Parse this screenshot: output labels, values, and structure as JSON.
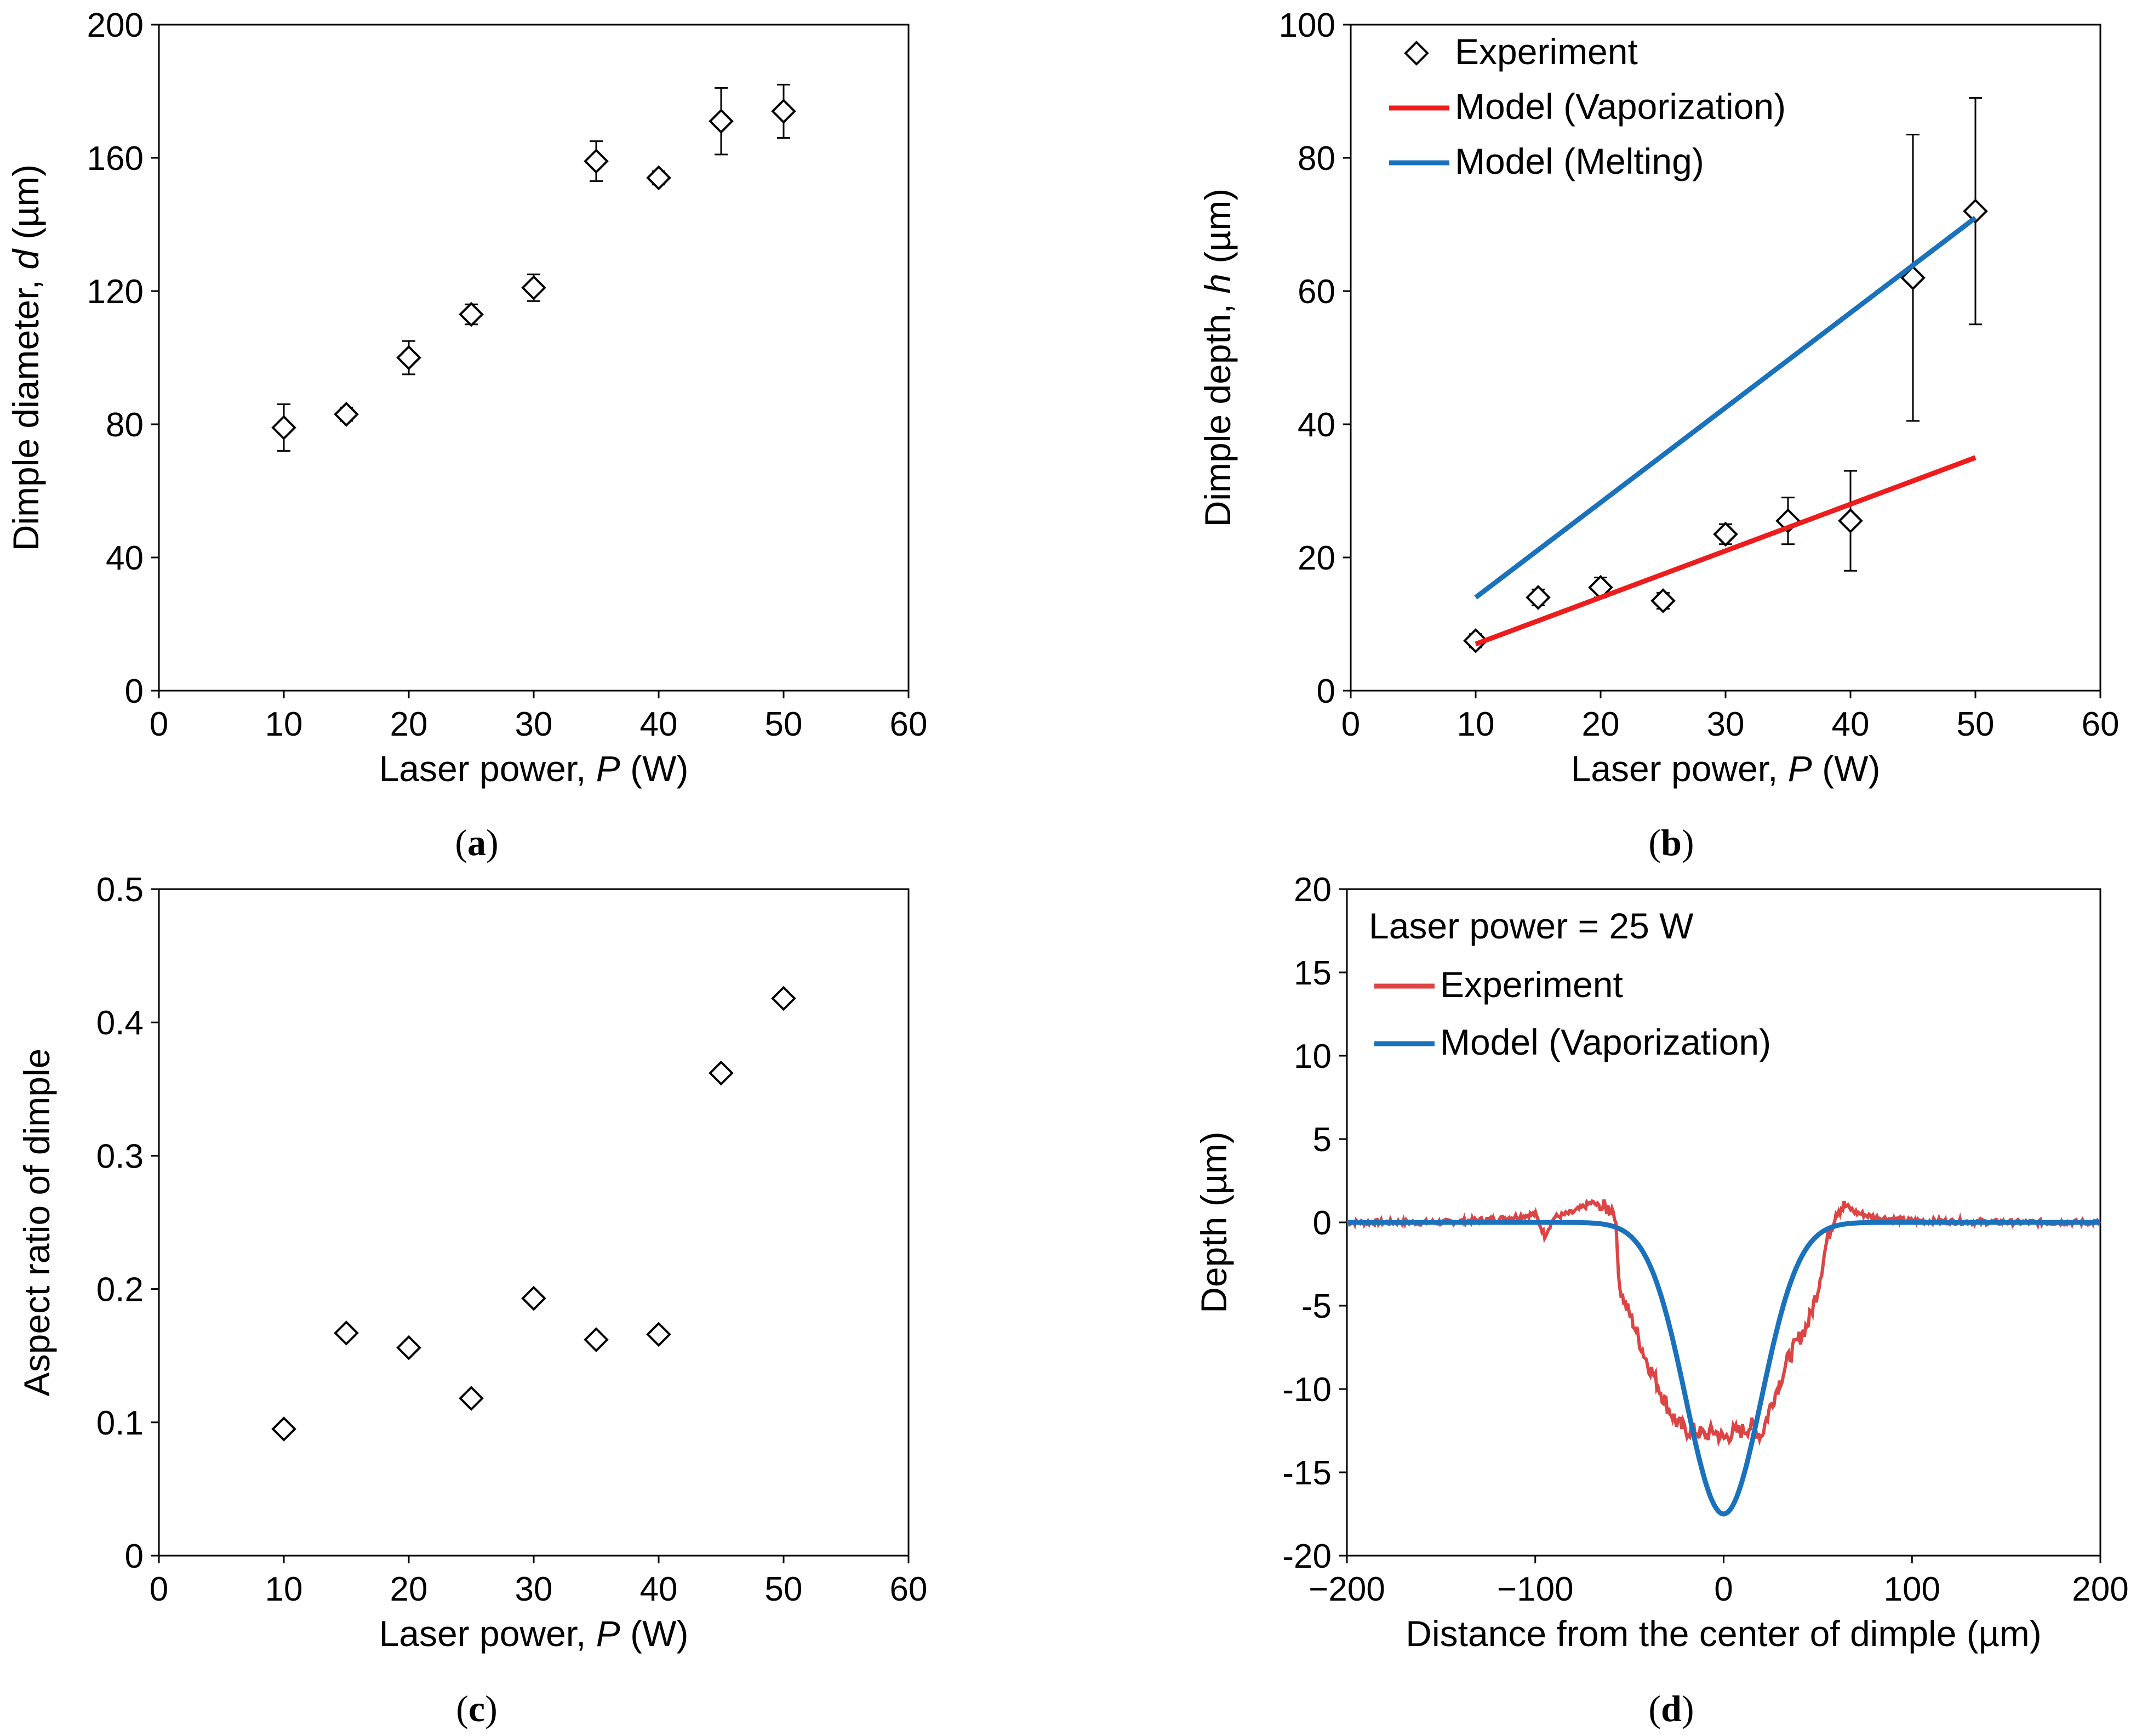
{
  "chart_data": [
    {
      "panel": "(a)",
      "type": "scatter",
      "title": "",
      "xlabel": "Laser power, ",
      "xlabel_var": "P",
      "xlabel_unit": " (W)",
      "ylabel": "Dimple diameter, ",
      "ylabel_var": "d",
      "ylabel_unit": " (µm)",
      "xlim": [
        0,
        60
      ],
      "ylim": [
        0,
        200
      ],
      "xticks": [
        0,
        10,
        20,
        30,
        40,
        50,
        60
      ],
      "yticks": [
        0,
        40,
        80,
        120,
        160,
        200
      ],
      "series": [
        {
          "name": "Experiment",
          "marker": "diamond",
          "x": [
            10,
            15,
            20,
            25,
            30,
            35,
            40,
            45,
            50
          ],
          "y": [
            79,
            83,
            100,
            113,
            121,
            159,
            154,
            171,
            174
          ],
          "err": [
            7,
            2,
            5,
            3,
            4,
            6,
            2,
            10,
            8
          ]
        }
      ]
    },
    {
      "panel": "(b)",
      "type": "scatter",
      "title": "",
      "xlabel": "Laser power, ",
      "xlabel_var": "P",
      "xlabel_unit": " (W)",
      "ylabel": "Dimple depth, ",
      "ylabel_var": "h",
      "ylabel_unit": " (µm)",
      "xlim": [
        0,
        60
      ],
      "ylim": [
        0,
        100
      ],
      "xticks": [
        0,
        10,
        20,
        30,
        40,
        50,
        60
      ],
      "yticks": [
        0,
        20,
        40,
        60,
        80,
        100
      ],
      "legend_position": "top-left",
      "series": [
        {
          "name": "Experiment",
          "marker": "diamond",
          "x": [
            10,
            15,
            20,
            25,
            30,
            35,
            40,
            45,
            50
          ],
          "y": [
            7.5,
            14,
            15.5,
            13.5,
            23.5,
            25.5,
            25.5,
            62,
            72
          ],
          "err": [
            1,
            1.2,
            1.5,
            1.2,
            1.5,
            3.5,
            7.5,
            21.5,
            17
          ]
        },
        {
          "name": "Model (Vaporization)",
          "type": "line",
          "color": "#ee1c1c",
          "x": [
            10,
            50
          ],
          "y": [
            7,
            35
          ]
        },
        {
          "name": "Model (Melting)",
          "type": "line",
          "color": "#1a72bd",
          "x": [
            10,
            50
          ],
          "y": [
            14,
            71
          ]
        }
      ]
    },
    {
      "panel": "(c)",
      "type": "scatter",
      "title": "",
      "xlabel": "Laser power, ",
      "xlabel_var": "P",
      "xlabel_unit": " (W)",
      "ylabel": "Aspect ratio of dimple",
      "ylabel_var": "",
      "ylabel_unit": "",
      "xlim": [
        0,
        60
      ],
      "ylim": [
        0,
        0.5
      ],
      "xticks": [
        0,
        10,
        20,
        30,
        40,
        50,
        60
      ],
      "yticks": [
        0,
        0.1,
        0.2,
        0.3,
        0.4,
        0.5
      ],
      "series": [
        {
          "name": "Aspect ratio",
          "marker": "diamond",
          "x": [
            10,
            15,
            20,
            25,
            30,
            35,
            40,
            45,
            50
          ],
          "y": [
            0.095,
            0.167,
            0.156,
            0.118,
            0.193,
            0.162,
            0.166,
            0.362,
            0.418
          ]
        }
      ]
    },
    {
      "panel": "(d)",
      "type": "line",
      "title": "",
      "annotation": "Laser power = 25 W",
      "xlabel": "Distance from the center of dimple (µm)",
      "xlabel_var": "",
      "xlabel_unit": "",
      "ylabel": "Depth (µm)",
      "ylabel_var": "",
      "ylabel_unit": "",
      "xlim": [
        -200,
        200
      ],
      "ylim": [
        -20,
        20
      ],
      "xticks": [
        -200,
        -100,
        0,
        100,
        200
      ],
      "xticklabels": [
        "−200",
        "−100",
        "0",
        "100",
        "200"
      ],
      "yticks": [
        -20,
        -15,
        -10,
        -5,
        0,
        5,
        10,
        15,
        20
      ],
      "legend_position": "top-left",
      "series": [
        {
          "name": "Experiment",
          "color": "#dd4444",
          "x": [
            -200,
            -150,
            -120,
            -100,
            -95,
            -90,
            -80,
            -70,
            -65,
            -58,
            -55,
            -52,
            -48,
            -42,
            -36,
            -30,
            -25,
            -20,
            -15,
            -10,
            -5,
            0,
            5,
            10,
            15,
            20,
            25,
            30,
            35,
            40,
            45,
            50,
            55,
            60,
            65,
            70,
            80,
            100,
            150,
            200
          ],
          "y": [
            0,
            0,
            0.2,
            0.5,
            -0.8,
            0.3,
            0.6,
            1.2,
            0.9,
            0.8,
            -4,
            -5,
            -6,
            -8,
            -9.5,
            -11,
            -12,
            -12.5,
            -12.5,
            -12.8,
            -12.5,
            -13,
            -12.6,
            -12.5,
            -12.2,
            -12.8,
            -11,
            -9.5,
            -8,
            -7,
            -6,
            -4,
            -1,
            0.8,
            1,
            0.6,
            0.3,
            0.1,
            0,
            0
          ]
        },
        {
          "name": "Model (Vaporization)",
          "color": "#1a72bd",
          "function": "gaussian",
          "amplitude": -17.5,
          "sigma": 20,
          "x_range": [
            -200,
            200
          ]
        }
      ]
    }
  ],
  "captions": [
    "(a)",
    "(b)",
    "(c)",
    "(d)"
  ]
}
